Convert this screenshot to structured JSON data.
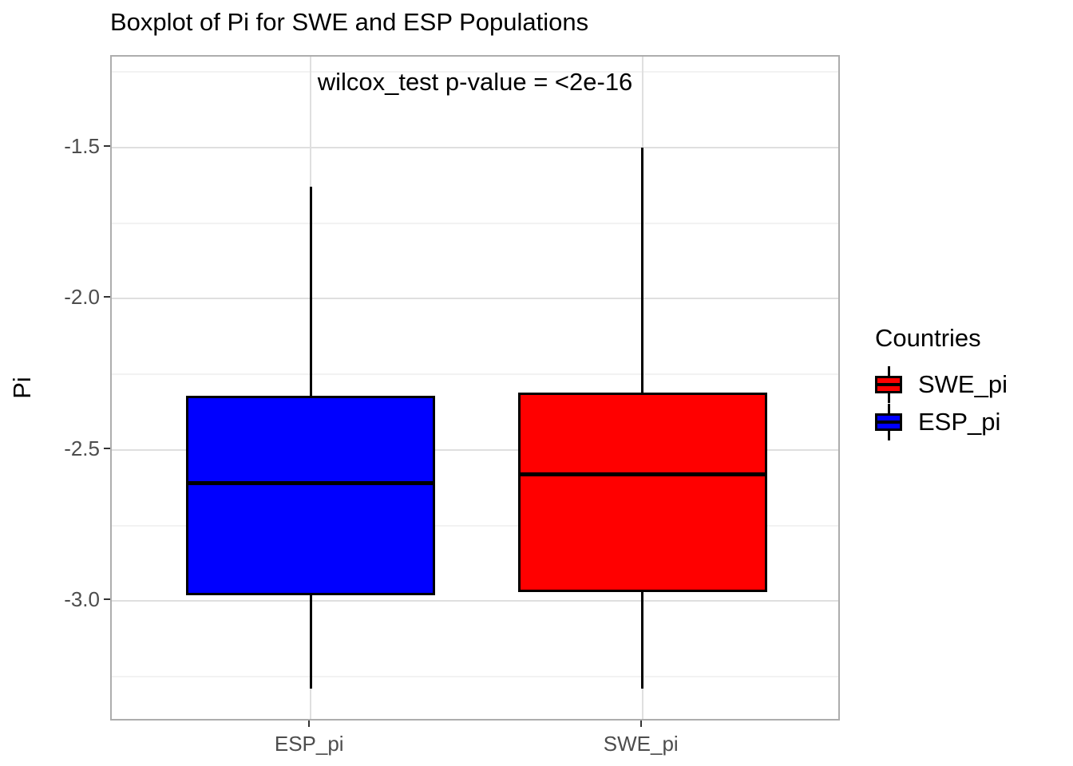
{
  "chart": {
    "title": "Boxplot of Pi for SWE and ESP Populations",
    "subtitle": "wilcox_test p-value = <2e-16",
    "ylabel": "Pi",
    "xlabel": ""
  },
  "legend": {
    "title": "Countries",
    "items": [
      {
        "label": "SWE_pi",
        "color": "#ff0000"
      },
      {
        "label": "ESP_pi",
        "color": "#0000ff"
      }
    ]
  },
  "chart_data": {
    "type": "boxplot",
    "title": "Boxplot of Pi for SWE and ESP Populations",
    "subtitle": "wilcox_test p-value = <2e-16",
    "ylabel": "Pi",
    "xlabel": "",
    "categories": [
      "ESP_pi",
      "SWE_pi"
    ],
    "series": [
      {
        "name": "ESP_pi",
        "color": "#0000ff",
        "whisker_low": -3.29,
        "q1": -2.98,
        "median": -2.61,
        "q3": -2.32,
        "whisker_high": -1.63
      },
      {
        "name": "SWE_pi",
        "color": "#ff0000",
        "whisker_low": -3.29,
        "q1": -2.97,
        "median": -2.58,
        "q3": -2.31,
        "whisker_high": -1.5
      }
    ],
    "yticks": [
      -1.5,
      -2.0,
      -2.5,
      -3.0
    ],
    "ytick_labels": [
      "-1.5",
      "-2.0",
      "-2.5",
      "-3.0"
    ],
    "yticks_minor": [
      -1.25,
      -1.75,
      -2.25,
      -2.75,
      -3.25
    ],
    "ylim": [
      -3.4,
      -1.2
    ],
    "grid": "major+minor",
    "legend_position": "right",
    "legend_title": "Countries"
  },
  "colors": {
    "swe_box": "#ff0000",
    "esp_box": "#0000ff",
    "box_outline": "#000000",
    "axis_text": "#4d4d4d",
    "grid_major": "#dfdfdf",
    "grid_minor": "#f2f2f2",
    "panel_border": "#adadad"
  }
}
